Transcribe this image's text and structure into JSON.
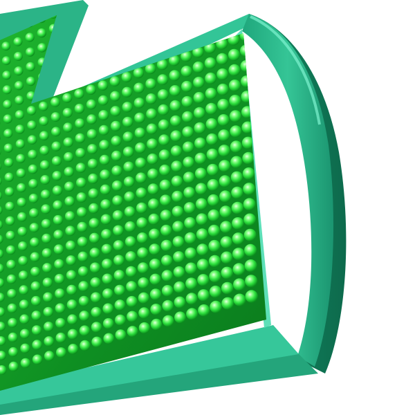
{
  "scene": {
    "subject": "green-led-arrow-sign",
    "background_color": "#ffffff",
    "frame_color": "#2ab58a",
    "frame_highlight_color": "#4fe8c4",
    "frame_shadow_color": "#0f6b4f",
    "panel_color": "#0f8a1e",
    "led_color": "#39ff4c",
    "led_glow_color": "#7dff8a"
  }
}
